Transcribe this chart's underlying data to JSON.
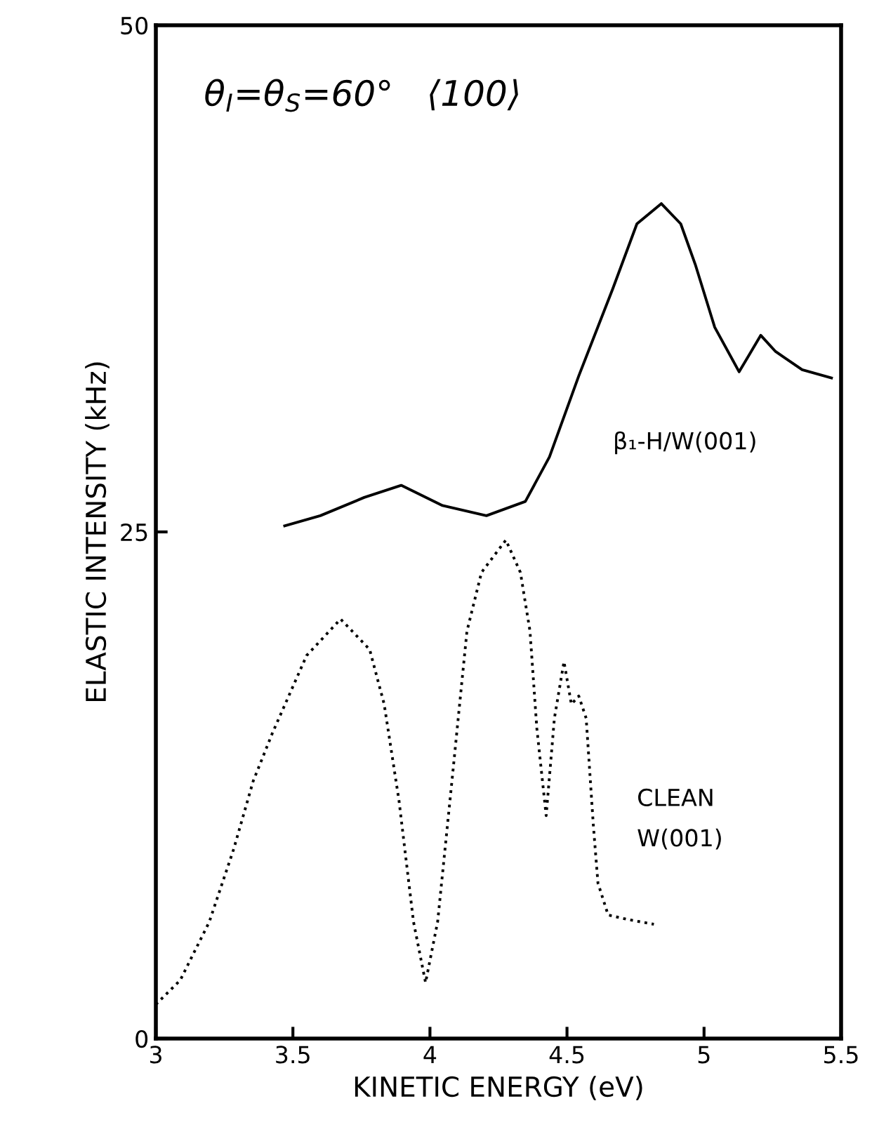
{
  "chart_data": {
    "type": "line",
    "title": "θ$_{I}$=θ$_{S}$=60°   ⟨100⟩",
    "xlabel": "KINETIC ENERGY (eV)",
    "ylabel": "ELASTIC INTENSITY (kHz)",
    "xlim": [
      3,
      5.5
    ],
    "xticks": [
      3,
      3.5,
      4,
      4.5,
      5,
      5.5
    ],
    "ylim": [
      0,
      50
    ],
    "yticks": [
      0,
      25,
      50
    ],
    "grid": false,
    "legend": false,
    "series": [
      {
        "name": "β₁-H/W(001)",
        "color": "#000000",
        "line_style": "solid",
        "x": [
          3.47,
          3.6,
          3.76,
          3.895,
          4.046,
          4.206,
          4.348,
          4.436,
          4.543,
          4.667,
          4.755,
          4.844,
          4.915,
          4.968,
          5.039,
          5.128,
          5.207,
          5.261,
          5.358,
          5.465
        ],
        "values": [
          25.3,
          25.8,
          26.7,
          27.3,
          26.3,
          25.8,
          26.5,
          28.7,
          32.7,
          37.0,
          40.2,
          41.2,
          40.2,
          38.2,
          35.1,
          32.9,
          34.7,
          33.9,
          33.0,
          32.6
        ]
      },
      {
        "name": "CLEAN\nW(001)",
        "color": "#000000",
        "line_style": "dotted",
        "x": [
          3.0,
          3.089,
          3.195,
          3.284,
          3.355,
          3.426,
          3.55,
          3.674,
          3.78,
          3.833,
          3.887,
          3.94,
          3.984,
          4.028,
          4.082,
          4.135,
          4.188,
          4.277,
          4.33,
          4.365,
          4.39,
          4.424,
          4.454,
          4.489,
          4.516,
          4.543,
          4.57,
          4.596,
          4.613,
          4.65,
          4.72,
          4.817
        ],
        "values": [
          1.68,
          2.88,
          5.76,
          9.35,
          12.7,
          15.1,
          18.9,
          20.7,
          19.2,
          16.5,
          11.75,
          5.76,
          2.76,
          5.76,
          12.95,
          20.1,
          23.0,
          24.6,
          23.0,
          20.1,
          15.3,
          11.0,
          15.8,
          18.6,
          16.5,
          16.9,
          15.8,
          10.55,
          7.67,
          6.1,
          5.88,
          5.64
        ]
      }
    ]
  }
}
